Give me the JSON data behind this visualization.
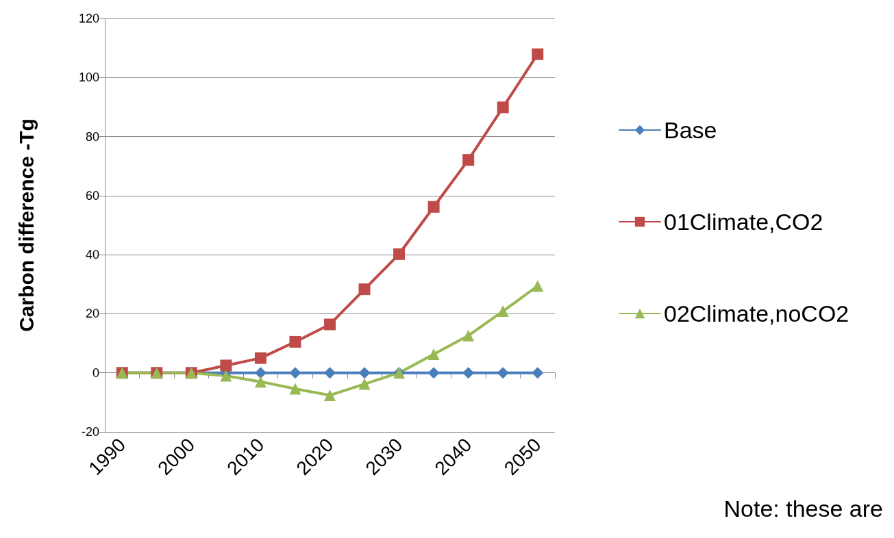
{
  "chart_data": {
    "type": "line",
    "ylabel": "Carbon difference -Tg",
    "categories": [
      "1990",
      null,
      "2000",
      null,
      "2010",
      null,
      "2020",
      null,
      "2030",
      null,
      "2040",
      null,
      "2050"
    ],
    "series": [
      {
        "name": "Base",
        "color": "#4a7ebb",
        "marker": "diamond",
        "values": [
          0,
          0,
          0,
          0,
          0,
          0,
          0,
          0,
          0,
          0,
          0,
          0,
          0
        ]
      },
      {
        "name": "01Climate,CO2",
        "color": "#be4b48",
        "marker": "square",
        "values": [
          0,
          0,
          0,
          2.5,
          5,
          10.5,
          16.4,
          28.3,
          40.2,
          56.2,
          72.1,
          89.9,
          107.9
        ]
      },
      {
        "name": "02Climate,noCO2",
        "color": "#98b954",
        "marker": "triangle",
        "values": [
          0,
          0,
          0,
          -1,
          -3,
          -5.4,
          -7.6,
          -3.8,
          0,
          6.3,
          12.6,
          20.9,
          29.4
        ]
      }
    ],
    "ylim": [
      -20,
      120
    ],
    "yticks": [
      -20,
      0,
      20,
      40,
      60,
      80,
      100,
      120
    ],
    "grid": "y",
    "legend": "right",
    "line_style": "solid",
    "annotations": [
      "Note: these are"
    ]
  }
}
